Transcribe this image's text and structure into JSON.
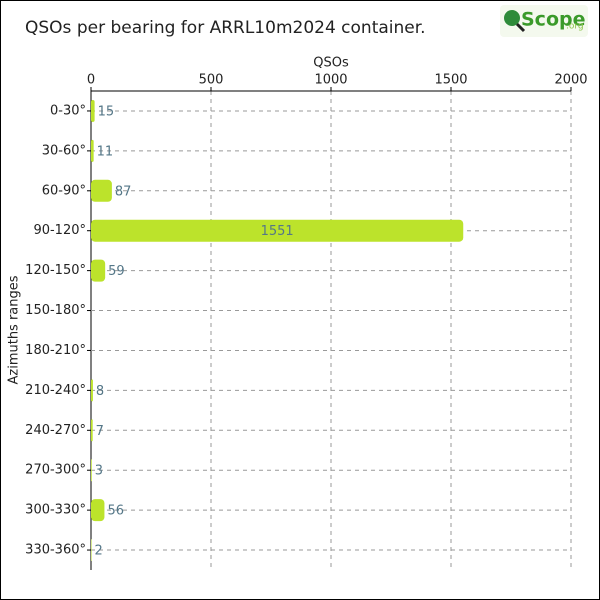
{
  "logo": {
    "name": "Scope",
    "suffix": ".org"
  },
  "chart_data": {
    "type": "barh",
    "title": "QSOs per bearing for ARRL10m2024 container.",
    "xlabel": "QSOs",
    "ylabel": "Azimuths ranges",
    "categories": [
      "0-30°",
      "30-60°",
      "60-90°",
      "90-120°",
      "120-150°",
      "150-180°",
      "180-210°",
      "210-240°",
      "240-270°",
      "270-300°",
      "300-330°",
      "330-360°"
    ],
    "values": [
      15,
      11,
      87,
      1551,
      59,
      0,
      0,
      8,
      7,
      3,
      56,
      2
    ],
    "color": "#bce32b",
    "xlim": [
      0,
      2000
    ],
    "xticks": [
      0,
      500,
      1000,
      1500,
      2000
    ],
    "grid": true
  }
}
